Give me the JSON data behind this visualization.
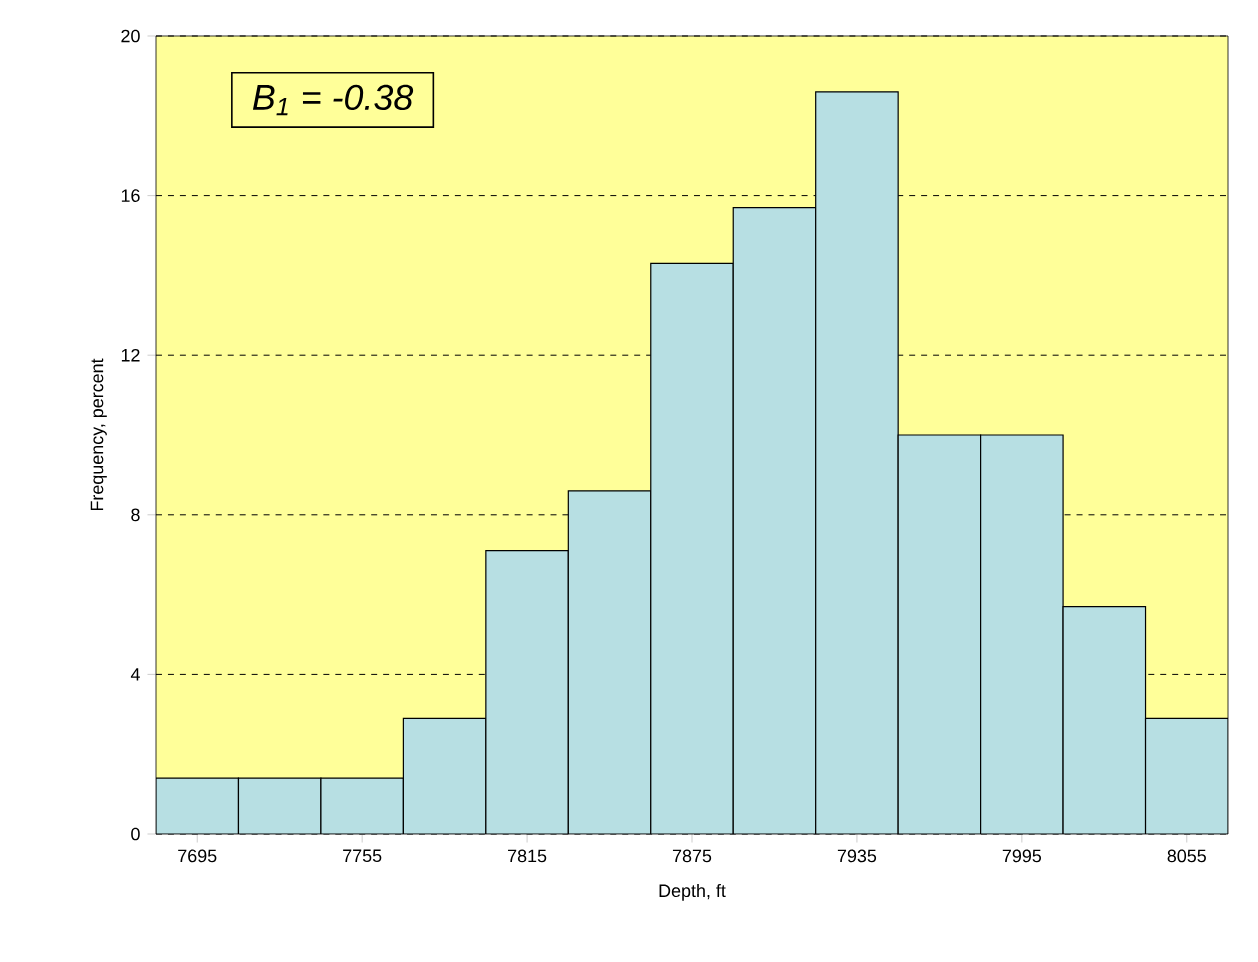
{
  "chart_data": {
    "type": "histogram",
    "xlabel": "Depth, ft",
    "ylabel": "Frequency, percent",
    "bins": [
      7680,
      7710,
      7740,
      7770,
      7800,
      7830,
      7860,
      7890,
      7920,
      7950,
      7980,
      8010,
      8040,
      8070
    ],
    "values": [
      1.4,
      1.4,
      1.4,
      2.9,
      7.1,
      8.6,
      14.3,
      15.7,
      18.6,
      10.0,
      10.0,
      5.7,
      2.9
    ],
    "color": "#b7dfe3",
    "xlim": [
      7680,
      8070
    ],
    "xticks": [
      7695,
      7755,
      7815,
      7875,
      7935,
      7995,
      8055
    ],
    "ylim": [
      0,
      20
    ],
    "yticks": [
      0,
      4,
      8,
      12,
      16,
      20
    ],
    "grid": "y",
    "line_style": "dashed",
    "annotations": [
      "B$_{1}$ = -0.38"
    ]
  }
}
